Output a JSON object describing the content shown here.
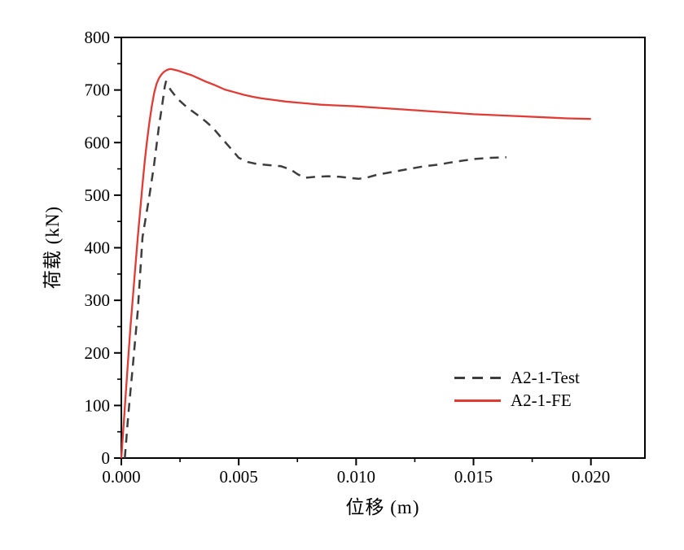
{
  "figure": {
    "background": "#ffffff",
    "axis_color": "#000000",
    "text_color": "#000000"
  },
  "chart_data": {
    "type": "line",
    "title": "",
    "xlabel": "位移 (m)",
    "ylabel": "荷载 (kN)",
    "xlim": [
      0,
      0.0223
    ],
    "ylim": [
      0,
      800
    ],
    "grid": false,
    "legend_position": "inside-lower-right",
    "x_major_ticks": [
      0,
      0.005,
      0.01,
      0.015,
      0.02
    ],
    "x_tick_labels": [
      "0.000",
      "0.005",
      "0.010",
      "0.015",
      "0.020"
    ],
    "x_minor_ticks": [
      0.0025,
      0.0075,
      0.0125,
      0.0175
    ],
    "y_major_ticks": [
      0,
      100,
      200,
      300,
      400,
      500,
      600,
      700,
      800
    ],
    "y_tick_labels": [
      "0",
      "100",
      "200",
      "300",
      "400",
      "500",
      "600",
      "700",
      "800"
    ],
    "y_minor_ticks": [
      50,
      150,
      250,
      350,
      450,
      550,
      650,
      750
    ],
    "series": [
      {
        "name": "A2-1-Test",
        "style": "dashed",
        "color": "#3d3d3d",
        "width": 2.5,
        "points": [
          [
            0.00015,
            0
          ],
          [
            0.0003,
            85
          ],
          [
            0.0005,
            180
          ],
          [
            0.0007,
            280
          ],
          [
            0.0009,
            420
          ],
          [
            0.0012,
            500
          ],
          [
            0.0014,
            560
          ],
          [
            0.0016,
            630
          ],
          [
            0.00175,
            675
          ],
          [
            0.00185,
            706
          ],
          [
            0.0019,
            716
          ],
          [
            0.0021,
            700
          ],
          [
            0.0024,
            683
          ],
          [
            0.0028,
            667
          ],
          [
            0.0032,
            654
          ],
          [
            0.0036,
            640
          ],
          [
            0.0039,
            628
          ],
          [
            0.0043,
            607
          ],
          [
            0.0046,
            592
          ],
          [
            0.005,
            571
          ],
          [
            0.0054,
            563
          ],
          [
            0.0058,
            559
          ],
          [
            0.0063,
            557
          ],
          [
            0.0068,
            555
          ],
          [
            0.0072,
            549
          ],
          [
            0.0075,
            540
          ],
          [
            0.0078,
            533
          ],
          [
            0.0083,
            535
          ],
          [
            0.0088,
            536
          ],
          [
            0.0093,
            535
          ],
          [
            0.0097,
            533
          ],
          [
            0.0101,
            531
          ],
          [
            0.0105,
            534
          ],
          [
            0.0109,
            539
          ],
          [
            0.0114,
            543
          ],
          [
            0.0119,
            547
          ],
          [
            0.0124,
            551
          ],
          [
            0.0129,
            555
          ],
          [
            0.0135,
            558
          ],
          [
            0.014,
            562
          ],
          [
            0.0146,
            566
          ],
          [
            0.0151,
            569
          ],
          [
            0.0157,
            571
          ],
          [
            0.0164,
            572
          ]
        ]
      },
      {
        "name": "A2-1-FE",
        "style": "solid",
        "color": "#e03b35",
        "width": 2.3,
        "points": [
          [
            0,
            0
          ],
          [
            0.0002,
            130
          ],
          [
            0.0003,
            195
          ],
          [
            0.0004,
            255
          ],
          [
            0.0005,
            310
          ],
          [
            0.0006,
            365
          ],
          [
            0.0007,
            420
          ],
          [
            0.0008,
            470
          ],
          [
            0.0009,
            520
          ],
          [
            0.001,
            565
          ],
          [
            0.0011,
            605
          ],
          [
            0.0012,
            640
          ],
          [
            0.0013,
            670
          ],
          [
            0.0014,
            695
          ],
          [
            0.0015,
            712
          ],
          [
            0.0016,
            722
          ],
          [
            0.0017,
            729
          ],
          [
            0.0018,
            734
          ],
          [
            0.0019,
            737
          ],
          [
            0.002,
            739
          ],
          [
            0.0021,
            740
          ],
          [
            0.0022,
            739
          ],
          [
            0.0024,
            737
          ],
          [
            0.0026,
            734
          ],
          [
            0.0028,
            731
          ],
          [
            0.003,
            728
          ],
          [
            0.0033,
            722
          ],
          [
            0.0036,
            716
          ],
          [
            0.004,
            709
          ],
          [
            0.0044,
            701
          ],
          [
            0.0048,
            696
          ],
          [
            0.0052,
            691
          ],
          [
            0.0056,
            687
          ],
          [
            0.006,
            684
          ],
          [
            0.0065,
            681
          ],
          [
            0.007,
            678
          ],
          [
            0.0075,
            676
          ],
          [
            0.008,
            674
          ],
          [
            0.0085,
            672
          ],
          [
            0.009,
            671
          ],
          [
            0.0095,
            670
          ],
          [
            0.01,
            669
          ],
          [
            0.011,
            666
          ],
          [
            0.012,
            663
          ],
          [
            0.013,
            660
          ],
          [
            0.014,
            657
          ],
          [
            0.015,
            654
          ],
          [
            0.016,
            652
          ],
          [
            0.017,
            650
          ],
          [
            0.018,
            648
          ],
          [
            0.019,
            646
          ],
          [
            0.02,
            645
          ]
        ]
      }
    ]
  }
}
